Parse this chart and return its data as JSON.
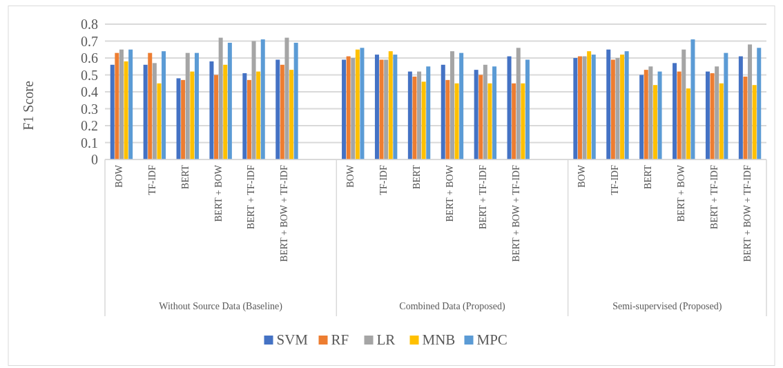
{
  "chart_data": {
    "type": "bar",
    "ylabel": "F1 Score",
    "categories": [
      "BOW",
      "TF-IDF",
      "BERT",
      "BERT + BOW",
      "BERT + TF-IDF",
      "BERT + BOW + TF-IDF",
      null,
      "BOW",
      "TF-IDF",
      "BERT",
      "BERT + BOW",
      "BERT + TF-IDF",
      "BERT + BOW + TF-IDF",
      null,
      "BOW",
      "TF-IDF",
      "BERT",
      "BERT + BOW",
      "BERT + TF-IDF",
      "BERT + BOW + TF-IDF"
    ],
    "series": [
      {
        "name": "SVM",
        "color": "#4472c4",
        "values": [
          0.56,
          0.56,
          0.48,
          0.58,
          0.51,
          0.59,
          null,
          0.59,
          0.62,
          0.52,
          0.56,
          0.53,
          0.61,
          null,
          0.6,
          0.65,
          0.5,
          0.57,
          0.52,
          0.61
        ]
      },
      {
        "name": "RF",
        "color": "#ed7d31",
        "values": [
          0.63,
          0.63,
          0.47,
          0.5,
          0.47,
          0.56,
          null,
          0.61,
          0.59,
          0.49,
          0.47,
          0.5,
          0.45,
          null,
          0.61,
          0.59,
          0.53,
          0.52,
          0.51,
          0.49
        ]
      },
      {
        "name": "LR",
        "color": "#a5a5a5",
        "values": [
          0.65,
          0.57,
          0.63,
          0.72,
          0.7,
          0.72,
          null,
          0.6,
          0.59,
          0.52,
          0.64,
          0.56,
          0.66,
          null,
          0.61,
          0.6,
          0.55,
          0.65,
          0.55,
          0.68
        ]
      },
      {
        "name": "MNB",
        "color": "#ffc000",
        "values": [
          0.58,
          0.45,
          0.52,
          0.56,
          0.52,
          0.53,
          null,
          0.65,
          0.64,
          0.46,
          0.45,
          0.45,
          0.45,
          null,
          0.64,
          0.62,
          0.44,
          0.42,
          0.45,
          0.44
        ]
      },
      {
        "name": "MPC",
        "color": "#5b9bd5",
        "values": [
          0.65,
          0.64,
          0.63,
          0.69,
          0.71,
          0.69,
          null,
          0.66,
          0.62,
          0.55,
          0.63,
          0.55,
          0.59,
          null,
          0.62,
          0.64,
          0.52,
          0.71,
          0.63,
          0.66
        ]
      }
    ],
    "annotations": [
      "Without Source Data (Baseline)",
      "Combined Data (Proposed)",
      "Semi-supervised (Proposed)"
    ],
    "ylim": [
      0,
      0.8
    ],
    "yticks": [
      0,
      0.1,
      0.2,
      0.3,
      0.4,
      0.5,
      0.6,
      0.7,
      0.8
    ],
    "grid": "y",
    "legend": "bottom"
  }
}
